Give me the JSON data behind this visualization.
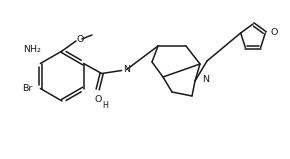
{
  "bg_color": "#ffffff",
  "lc": "#1a1a1a",
  "lw": 1.1,
  "fs": 6.8,
  "figsize": [
    2.9,
    1.59
  ],
  "dpi": 100,
  "xlim": [
    0,
    290
  ],
  "ylim": [
    0,
    159
  ]
}
